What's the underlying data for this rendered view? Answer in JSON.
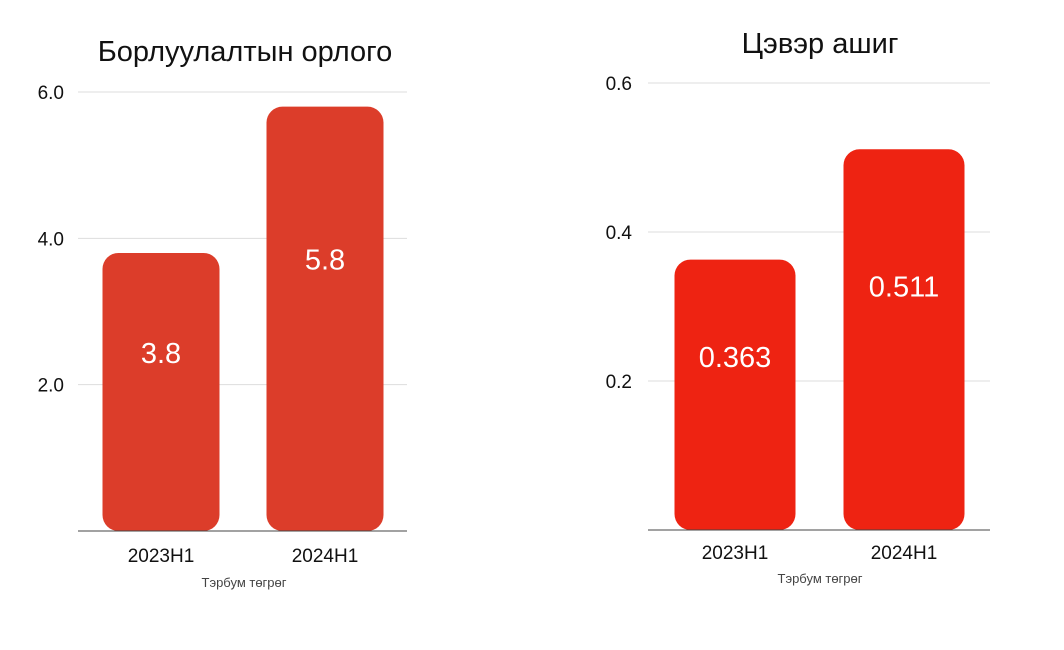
{
  "colors": {
    "bar_1": "#DC3D2A",
    "bar_2": "#EE2312",
    "grid": "#dddddd",
    "axis": "#444444"
  },
  "chart_data": [
    {
      "type": "bar",
      "title": "Борлуулалтын орлого",
      "xlabel": "Тэрбум төгрөг",
      "ylabel": "",
      "categories": [
        "2023H1",
        "2024H1"
      ],
      "values": [
        3.8,
        5.8
      ],
      "data_labels": [
        "3.8",
        "5.8"
      ],
      "ylim": [
        0,
        6.0
      ],
      "yticks": [
        2.0,
        4.0,
        6.0
      ],
      "ytick_labels": [
        "2.0",
        "4.0",
        "6.0"
      ],
      "grid": true,
      "legend": "none",
      "color": "#DC3D2A"
    },
    {
      "type": "bar",
      "title": "Цэвэр ашиг",
      "xlabel": "Тэрбум төгрөг",
      "ylabel": "",
      "categories": [
        "2023H1",
        "2024H1"
      ],
      "values": [
        0.363,
        0.511
      ],
      "data_labels": [
        "0.363",
        "0.511"
      ],
      "ylim": [
        0,
        0.6
      ],
      "yticks": [
        0.2,
        0.4,
        0.6
      ],
      "ytick_labels": [
        "0.2",
        "0.4",
        "0.6"
      ],
      "grid": true,
      "legend": "none",
      "color": "#EE2312"
    }
  ]
}
